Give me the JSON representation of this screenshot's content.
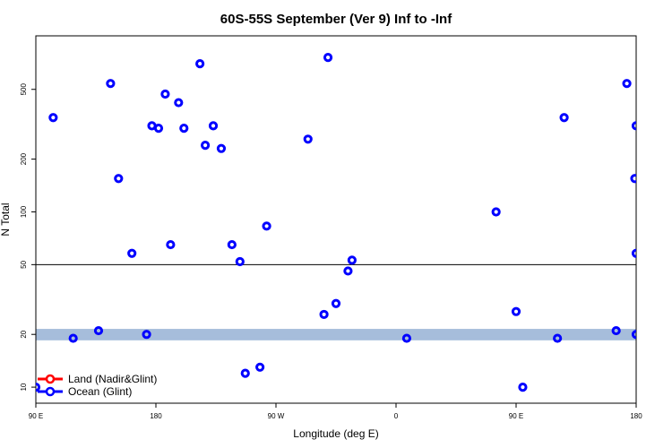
{
  "chart_data": {
    "type": "scatter",
    "title": "60S-55S September (Ver 9)   Inf to -Inf",
    "xlabel": "Longitude (deg E)",
    "ylabel": "N Total",
    "x_ticks": [
      {
        "value": 90,
        "label": "90 E"
      },
      {
        "value": 180,
        "label": "180"
      },
      {
        "value": 270,
        "label": "90 W"
      },
      {
        "value": 360,
        "label": "0"
      },
      {
        "value": 450,
        "label": "90 E"
      },
      {
        "value": 540,
        "label": "180"
      }
    ],
    "y_ticks": [
      {
        "value": 10,
        "label": "10"
      },
      {
        "value": 20,
        "label": "20"
      },
      {
        "value": 50,
        "label": "50"
      },
      {
        "value": 100,
        "label": "100"
      },
      {
        "value": 200,
        "label": "200"
      },
      {
        "value": 500,
        "label": "500"
      }
    ],
    "x_range": [
      90,
      540
    ],
    "y_scale": "log",
    "y_range": [
      8.1,
      1010
    ],
    "reference_line": 50,
    "band": {
      "low": 18.5,
      "high": 21.5,
      "color": "#a6bddb"
    },
    "series": [
      {
        "name": "Land (Nadir&Glint)",
        "color": "#ff0000",
        "points": []
      },
      {
        "name": "Ocean (Glint)",
        "color": "#0000ff",
        "points": [
          [
            103,
            345
          ],
          [
            118,
            19
          ],
          [
            137,
            21
          ],
          [
            146,
            540
          ],
          [
            152,
            155
          ],
          [
            162,
            58
          ],
          [
            173,
            20
          ],
          [
            177,
            310
          ],
          [
            182,
            300
          ],
          [
            187,
            470
          ],
          [
            191,
            65
          ],
          [
            197,
            420
          ],
          [
            201,
            300
          ],
          [
            213,
            700
          ],
          [
            217,
            240
          ],
          [
            223,
            310
          ],
          [
            229,
            230
          ],
          [
            237,
            65
          ],
          [
            243,
            52
          ],
          [
            247,
            12
          ],
          [
            258,
            13
          ],
          [
            263,
            83
          ],
          [
            294,
            260
          ],
          [
            306,
            26
          ],
          [
            309,
            760
          ],
          [
            315,
            30
          ],
          [
            324,
            46
          ],
          [
            327,
            53
          ],
          [
            368,
            19
          ],
          [
            435,
            100
          ],
          [
            450,
            27
          ],
          [
            455,
            10
          ],
          [
            481,
            19
          ],
          [
            486,
            345
          ],
          [
            525,
            21
          ],
          [
            533,
            540
          ],
          [
            539,
            155
          ],
          [
            548,
            58
          ],
          [
            558,
            20
          ],
          [
            562,
            310
          ],
          [
            90,
            10
          ]
        ]
      }
    ],
    "legend": {
      "position": "bottom-left",
      "entries": [
        {
          "label": "Land (Nadir&Glint)",
          "color": "#ff0000"
        },
        {
          "label": "Ocean (Glint)",
          "color": "#0000ff"
        }
      ]
    }
  }
}
